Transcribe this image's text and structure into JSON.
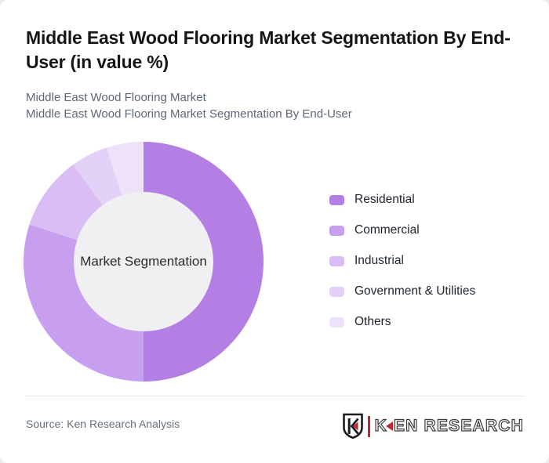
{
  "page": {
    "background_color": "#ededef",
    "card_color": "#ffffff"
  },
  "header": {
    "title": "Middle East Wood Flooring Market Segmentation By End-User (in value %)",
    "subtitle_line1": "Middle East Wood Flooring Market",
    "subtitle_line2": "Middle East Wood Flooring Market Segmentation By End-User"
  },
  "chart_data": {
    "type": "pie",
    "variant": "donut",
    "title": "Middle East Wood Flooring Market Segmentation By End-User (in value %)",
    "unit": "value %",
    "center_label": "Market Segmentation",
    "categories": [
      "Residential",
      "Commercial",
      "Industrial",
      "Government & Utilities",
      "Others"
    ],
    "values": [
      50,
      30,
      10,
      5,
      5
    ],
    "colors": [
      "#b47fe5",
      "#c79fee",
      "#d9bdf4",
      "#e4d1f7",
      "#eee2fb"
    ],
    "hole_color": "#f0eff1",
    "start_angle_deg": 0,
    "direction": "clockwise",
    "legend_position": "right",
    "data_labels_shown": false
  },
  "footer": {
    "source": "Source: Ken Research Analysis",
    "logo": {
      "shield_letter": "K",
      "text_k": "K",
      "text_rest": "EN RESEARCH",
      "brand": "KEN RESEARCH",
      "accent_color": "#c2272d",
      "outline_color": "#3a3a3c"
    }
  }
}
